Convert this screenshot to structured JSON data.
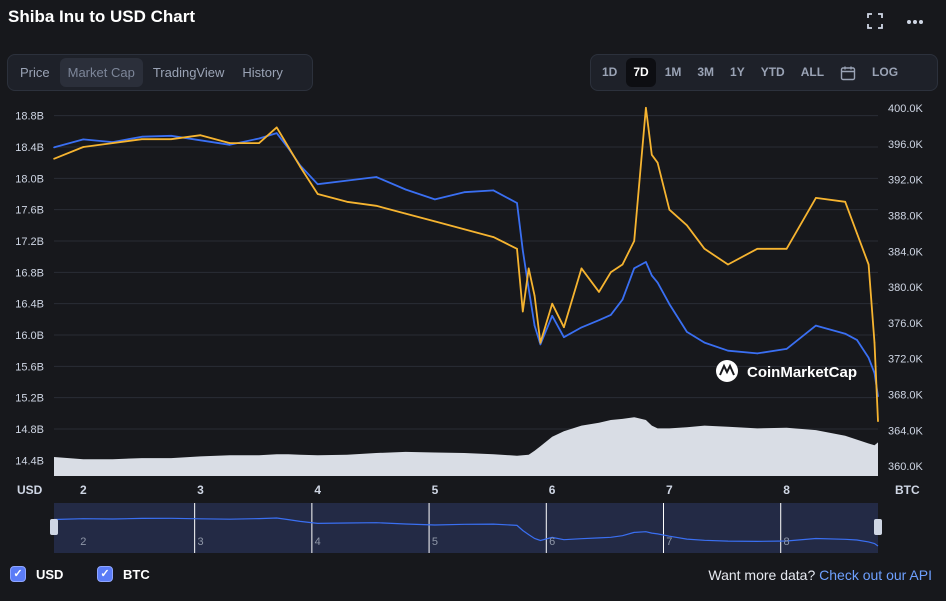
{
  "header": {
    "title": "Shiba Inu to USD Chart",
    "fullscreen_icon": "expand-icon",
    "menu_icon": "more-icon"
  },
  "view_tabs": [
    {
      "label": "Price",
      "active": false
    },
    {
      "label": "Market Cap",
      "active": true
    },
    {
      "label": "TradingView",
      "active": false
    },
    {
      "label": "History",
      "active": false
    }
  ],
  "range_tabs": [
    {
      "label": "1D",
      "active": false
    },
    {
      "label": "7D",
      "active": true
    },
    {
      "label": "1M",
      "active": false
    },
    {
      "label": "3M",
      "active": false
    },
    {
      "label": "1Y",
      "active": false
    },
    {
      "label": "YTD",
      "active": false
    },
    {
      "label": "ALL",
      "active": false
    }
  ],
  "calendar_icon": "calendar-icon",
  "log_label": "LOG",
  "colors": {
    "usd": "#f6b430",
    "btc": "#3a6ff2",
    "volume": "#d9dde5",
    "background": "#17181c"
  },
  "chart_data": {
    "type": "line",
    "x": [
      1.75,
      2.0,
      2.25,
      2.5,
      2.75,
      3.0,
      3.25,
      3.5,
      3.65,
      3.75,
      3.85,
      4.0,
      4.25,
      4.5,
      4.75,
      5.0,
      5.25,
      5.5,
      5.7,
      5.75,
      5.8,
      5.85,
      5.9,
      6.0,
      6.1,
      6.25,
      6.4,
      6.5,
      6.6,
      6.7,
      6.8,
      6.85,
      6.9,
      7.0,
      7.15,
      7.3,
      7.5,
      7.75,
      8.0,
      8.25,
      8.5,
      8.6,
      8.7,
      8.75,
      8.78
    ],
    "series": [
      {
        "name": "USD",
        "axis": "left",
        "values": [
          18.25,
          18.4,
          18.45,
          18.5,
          18.5,
          18.55,
          18.45,
          18.45,
          18.65,
          18.4,
          18.15,
          17.8,
          17.7,
          17.65,
          17.55,
          17.45,
          17.35,
          17.25,
          17.1,
          16.3,
          16.85,
          16.5,
          15.9,
          16.4,
          16.1,
          16.85,
          16.55,
          16.8,
          16.9,
          17.2,
          18.9,
          18.3,
          18.2,
          17.6,
          17.4,
          17.1,
          16.9,
          17.1,
          17.1,
          17.75,
          17.7,
          17.3,
          16.9,
          15.9,
          14.9
        ]
      },
      {
        "name": "BTC",
        "axis": "right",
        "values": [
          395.6,
          396.5,
          396.2,
          396.8,
          396.9,
          396.4,
          395.9,
          396.6,
          397.2,
          395.5,
          393.6,
          391.5,
          391.9,
          392.3,
          390.9,
          389.8,
          390.6,
          390.8,
          389.4,
          384.1,
          379.8,
          375.7,
          373.6,
          376.8,
          374.4,
          375.5,
          376.3,
          376.9,
          378.6,
          382.1,
          382.8,
          381.3,
          380.5,
          378.1,
          375.0,
          373.8,
          372.9,
          372.6,
          373.1,
          375.7,
          374.8,
          374.1,
          372.1,
          370.4,
          367.8
        ]
      }
    ],
    "volume": [
      0.34,
      0.3,
      0.3,
      0.32,
      0.32,
      0.35,
      0.37,
      0.37,
      0.39,
      0.39,
      0.38,
      0.37,
      0.38,
      0.41,
      0.43,
      0.42,
      0.41,
      0.39,
      0.36,
      0.37,
      0.38,
      0.45,
      0.53,
      0.7,
      0.8,
      0.9,
      0.95,
      1.0,
      1.02,
      1.05,
      1.0,
      0.9,
      0.85,
      0.85,
      0.87,
      0.9,
      0.88,
      0.85,
      0.86,
      0.82,
      0.72,
      0.65,
      0.58,
      0.55,
      0.6
    ],
    "ylim_left": [
      14.2,
      19.0
    ],
    "ylim_right": [
      358.9,
      400.9
    ],
    "xlim": [
      1.75,
      8.78
    ],
    "left_ticks": [
      "18.8B",
      "18.4B",
      "18.0B",
      "17.6B",
      "17.2B",
      "16.8B",
      "16.4B",
      "16.0B",
      "15.6B",
      "15.2B",
      "14.8B",
      "14.4B"
    ],
    "left_tick_values": [
      18.8,
      18.4,
      18.0,
      17.6,
      17.2,
      16.8,
      16.4,
      16.0,
      15.6,
      15.2,
      14.8,
      14.4
    ],
    "right_ticks": [
      "400.0K",
      "396.0K",
      "392.0K",
      "388.0K",
      "384.0K",
      "380.0K",
      "376.0K",
      "372.0K",
      "368.0K",
      "364.0K",
      "360.0K"
    ],
    "right_tick_values": [
      400,
      396,
      392,
      388,
      384,
      380,
      376,
      372,
      368,
      364,
      360
    ],
    "x_ticks": [
      "2",
      "3",
      "4",
      "5",
      "6",
      "7",
      "8"
    ],
    "x_tick_values": [
      2,
      3,
      4,
      5,
      6,
      7,
      8
    ],
    "left_axis_label": "USD",
    "right_axis_label": "BTC",
    "watermark": "CoinMarketCap",
    "navigator_ticks": [
      "2",
      "3",
      "4",
      "5",
      "6",
      "7",
      "8"
    ],
    "grid": true
  },
  "legend": {
    "usd_label": "USD",
    "btc_label": "BTC"
  },
  "footer": {
    "text": "Want more data?",
    "link": "Check out our API"
  }
}
